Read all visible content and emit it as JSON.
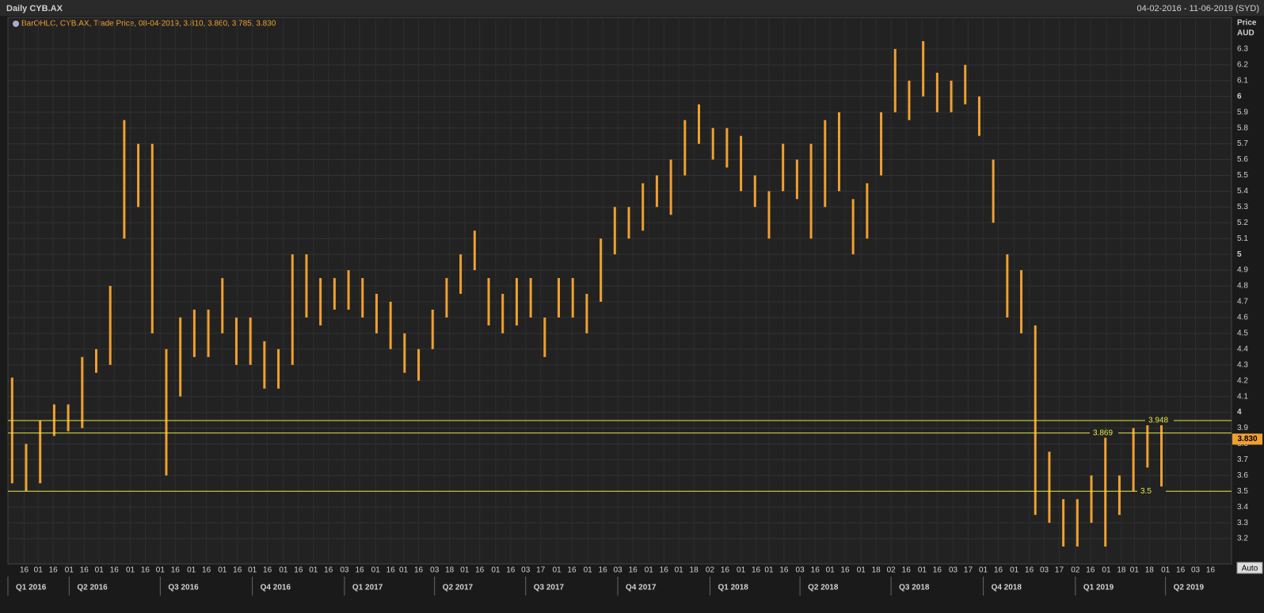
{
  "header": {
    "title": "Daily CYB.AX",
    "range": "04-02-2016 - 11-06-2019 (SYD)"
  },
  "chart_data": {
    "type": "ohlc-range",
    "legend": "BarOHLC, CYB.AX, Trade Price, 08-04-2019, 3.810, 3.860, 3.785, 3.830",
    "y_axis_label": "Price",
    "y_axis_unit": "AUD",
    "auto_button": "Auto",
    "color": "#f0a030",
    "grid": true,
    "x": [
      0,
      1,
      2,
      3,
      4,
      5,
      6,
      7,
      8,
      9,
      10,
      11,
      12,
      13,
      14,
      15,
      16,
      17,
      18,
      19,
      20,
      21,
      22,
      23,
      24,
      25,
      26,
      27,
      28,
      29,
      30,
      31,
      32,
      33,
      34,
      35,
      36,
      37,
      38,
      39,
      40,
      41,
      42,
      43,
      44,
      45,
      46,
      47,
      48,
      49,
      50,
      51,
      52,
      53,
      54,
      55,
      56,
      57,
      58,
      59,
      60,
      61,
      62,
      63,
      64,
      65,
      66,
      67,
      68,
      69,
      70,
      71,
      72,
      73,
      74,
      75,
      76,
      77,
      78,
      79,
      80,
      81,
      82
    ],
    "low": [
      3.55,
      3.5,
      3.55,
      3.85,
      3.88,
      3.9,
      4.25,
      4.3,
      5.1,
      5.3,
      4.5,
      3.6,
      4.1,
      4.35,
      4.35,
      4.5,
      4.3,
      4.3,
      4.15,
      4.15,
      4.3,
      4.6,
      4.55,
      4.65,
      4.65,
      4.6,
      4.5,
      4.4,
      4.25,
      4.2,
      4.4,
      4.6,
      4.75,
      4.9,
      4.55,
      4.5,
      4.55,
      4.6,
      4.35,
      4.6,
      4.6,
      4.5,
      4.7,
      5.0,
      5.1,
      5.15,
      5.3,
      5.25,
      5.5,
      5.7,
      5.6,
      5.55,
      5.4,
      5.3,
      5.1,
      5.4,
      5.35,
      5.1,
      5.3,
      5.4,
      5.0,
      5.1,
      5.5,
      5.9,
      5.85,
      6.0,
      5.9,
      5.9,
      5.95,
      5.75,
      5.2,
      4.6,
      4.5,
      3.35,
      3.3,
      3.15,
      3.15,
      3.3,
      3.15,
      3.35,
      3.5,
      3.65,
      3.5
    ],
    "high": [
      4.22,
      3.8,
      3.95,
      4.05,
      4.05,
      4.35,
      4.4,
      4.8,
      5.85,
      5.7,
      5.7,
      4.4,
      4.6,
      4.65,
      4.65,
      4.85,
      4.6,
      4.6,
      4.45,
      4.4,
      5.0,
      5.0,
      4.85,
      4.85,
      4.9,
      4.85,
      4.75,
      4.7,
      4.5,
      4.4,
      4.65,
      4.85,
      5.0,
      5.15,
      4.85,
      4.75,
      4.85,
      4.85,
      4.6,
      4.85,
      4.85,
      4.75,
      5.1,
      5.3,
      5.3,
      5.45,
      5.5,
      5.6,
      5.85,
      5.95,
      5.8,
      5.8,
      5.75,
      5.5,
      5.4,
      5.7,
      5.6,
      5.7,
      5.85,
      5.9,
      5.35,
      5.45,
      5.9,
      6.3,
      6.1,
      6.35,
      6.15,
      6.1,
      6.2,
      6.0,
      5.6,
      5.0,
      4.9,
      4.55,
      3.75,
      3.45,
      3.45,
      3.6,
      3.9,
      3.6,
      3.9,
      3.95,
      3.95
    ],
    "xlim": [
      -0.3,
      87
    ],
    "ylim": [
      3.04,
      6.41
    ],
    "yticks": [
      3.2,
      3.3,
      3.4,
      3.5,
      3.6,
      3.7,
      3.8,
      3.9,
      4,
      4.1,
      4.2,
      4.3,
      4.4,
      4.5,
      4.6,
      4.7,
      4.8,
      4.9,
      5,
      5.1,
      5.2,
      5.3,
      5.4,
      5.5,
      5.6,
      5.7,
      5.8,
      5.9,
      6,
      6.1,
      6.2,
      6.3
    ],
    "xticks": [
      {
        "value": 0.86,
        "label": "16"
      },
      {
        "value": 1.86,
        "label": "01"
      },
      {
        "value": 2.93,
        "label": "16"
      },
      {
        "value": 4.07,
        "label": "01"
      },
      {
        "value": 5.14,
        "label": "16"
      },
      {
        "value": 6.21,
        "label": "01"
      },
      {
        "value": 7.29,
        "label": "16"
      },
      {
        "value": 8.43,
        "label": "01"
      },
      {
        "value": 9.5,
        "label": "16"
      },
      {
        "value": 10.57,
        "label": "01"
      },
      {
        "value": 11.64,
        "label": "16"
      },
      {
        "value": 12.79,
        "label": "01"
      },
      {
        "value": 13.86,
        "label": "16"
      },
      {
        "value": 15,
        "label": "01"
      },
      {
        "value": 16.07,
        "label": "16"
      },
      {
        "value": 17.14,
        "label": "01"
      },
      {
        "value": 18.21,
        "label": "16"
      },
      {
        "value": 19.36,
        "label": "01"
      },
      {
        "value": 20.43,
        "label": "16"
      },
      {
        "value": 21.5,
        "label": "01"
      },
      {
        "value": 22.57,
        "label": "16"
      },
      {
        "value": 23.71,
        "label": "03"
      },
      {
        "value": 24.79,
        "label": "16"
      },
      {
        "value": 25.93,
        "label": "01"
      },
      {
        "value": 27,
        "label": "16"
      },
      {
        "value": 27.93,
        "label": "01"
      },
      {
        "value": 29,
        "label": "16"
      },
      {
        "value": 30.14,
        "label": "03"
      },
      {
        "value": 31.21,
        "label": "18"
      },
      {
        "value": 32.29,
        "label": "01"
      },
      {
        "value": 33.36,
        "label": "16"
      },
      {
        "value": 34.5,
        "label": "01"
      },
      {
        "value": 35.57,
        "label": "16"
      },
      {
        "value": 36.64,
        "label": "03"
      },
      {
        "value": 37.71,
        "label": "17"
      },
      {
        "value": 38.86,
        "label": "01"
      },
      {
        "value": 39.93,
        "label": "16"
      },
      {
        "value": 41.07,
        "label": "01"
      },
      {
        "value": 42.14,
        "label": "16"
      },
      {
        "value": 43.21,
        "label": "03"
      },
      {
        "value": 44.29,
        "label": "16"
      },
      {
        "value": 45.43,
        "label": "01"
      },
      {
        "value": 46.5,
        "label": "16"
      },
      {
        "value": 47.57,
        "label": "01"
      },
      {
        "value": 48.64,
        "label": "18"
      },
      {
        "value": 49.79,
        "label": "02"
      },
      {
        "value": 50.86,
        "label": "16"
      },
      {
        "value": 52,
        "label": "01"
      },
      {
        "value": 53.07,
        "label": "16"
      },
      {
        "value": 54,
        "label": "01"
      },
      {
        "value": 55.07,
        "label": "16"
      },
      {
        "value": 56.21,
        "label": "03"
      },
      {
        "value": 57.29,
        "label": "16"
      },
      {
        "value": 58.36,
        "label": "01"
      },
      {
        "value": 59.43,
        "label": "16"
      },
      {
        "value": 60.57,
        "label": "01"
      },
      {
        "value": 61.64,
        "label": "18"
      },
      {
        "value": 62.71,
        "label": "02"
      },
      {
        "value": 63.79,
        "label": "16"
      },
      {
        "value": 64.93,
        "label": "01"
      },
      {
        "value": 66,
        "label": "16"
      },
      {
        "value": 67.14,
        "label": "03"
      },
      {
        "value": 68.21,
        "label": "17"
      },
      {
        "value": 69.29,
        "label": "01"
      },
      {
        "value": 70.36,
        "label": "16"
      },
      {
        "value": 71.5,
        "label": "01"
      },
      {
        "value": 72.57,
        "label": "16"
      },
      {
        "value": 73.64,
        "label": "03"
      },
      {
        "value": 74.71,
        "label": "17"
      },
      {
        "value": 75.86,
        "label": "02"
      },
      {
        "value": 76.93,
        "label": "16"
      },
      {
        "value": 78.07,
        "label": "01"
      },
      {
        "value": 79.14,
        "label": "18"
      },
      {
        "value": 80.07,
        "label": "01"
      },
      {
        "value": 81.14,
        "label": "18"
      },
      {
        "value": 82.29,
        "label": "01"
      },
      {
        "value": 83.36,
        "label": "16"
      },
      {
        "value": 84.43,
        "label": "03"
      },
      {
        "value": 85.5,
        "label": "16"
      }
    ],
    "quarters": [
      {
        "value": -2.43,
        "label": "Q1 2016"
      },
      {
        "value": 4.07,
        "label": "Q2 2016"
      },
      {
        "value": 10.57,
        "label": "Q3 2016"
      },
      {
        "value": 17.14,
        "label": "Q4 2016"
      },
      {
        "value": 23.71,
        "label": "Q1 2017"
      },
      {
        "value": 30.14,
        "label": "Q2 2017"
      },
      {
        "value": 36.64,
        "label": "Q3 2017"
      },
      {
        "value": 43.21,
        "label": "Q4 2017"
      },
      {
        "value": 49.79,
        "label": "Q1 2018"
      },
      {
        "value": 56.21,
        "label": "Q2 2018"
      },
      {
        "value": 62.71,
        "label": "Q3 2018"
      },
      {
        "value": 69.29,
        "label": "Q4 2018"
      },
      {
        "value": 75.86,
        "label": "Q1 2019"
      },
      {
        "value": 82.29,
        "label": "Q2 2019"
      }
    ],
    "levels": [
      3.948,
      3.869,
      3.5
    ],
    "last_price": {
      "value": 3.83,
      "label": "3.830"
    }
  }
}
